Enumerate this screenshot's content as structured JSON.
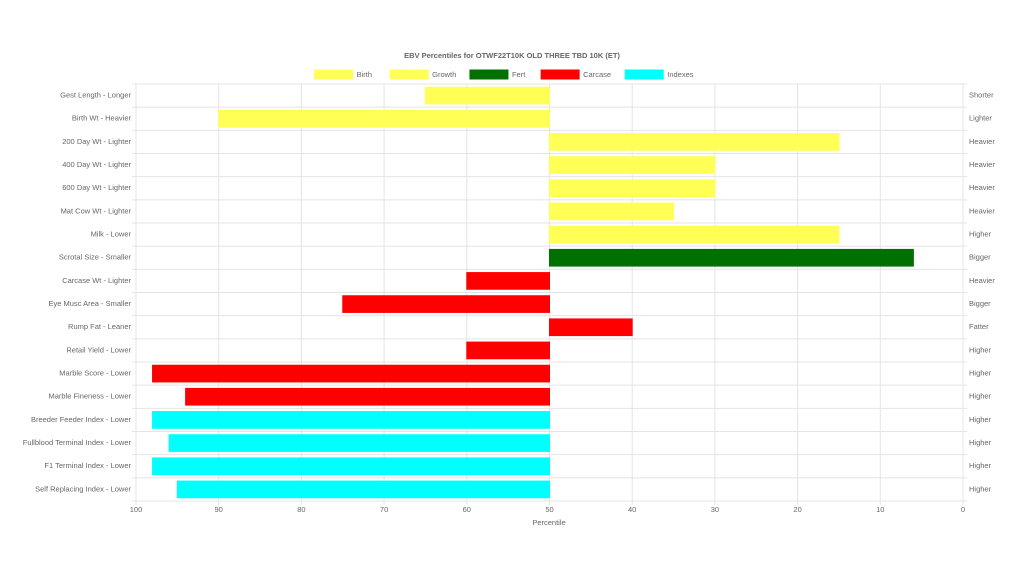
{
  "chart_data": {
    "type": "floating-bar",
    "title": "EBV Percentiles for OTWF22T10K OLD THREE TBD 10K (ET)",
    "x_label": "Percentile",
    "categories": [
      "Gest Length - Longer",
      "Birth Wt - Heavier",
      "200 Day Wt - Lighter",
      "400 Day Wt - Lighter",
      "600 Day Wt - Lighter",
      "Mat Cow Wt - Lighter",
      "Milk - Lower",
      "Scrotal Size - Smaller",
      "Carcase Wt - Lighter",
      "Eye Musc Area - Smaller",
      "Rump Fat - Leaner",
      "Retail Yield - Lower",
      "Marble Score - Lower",
      "Marble Fineness - Lower",
      "Breeder Feeder Index - Lower",
      "Fullblood Terminal Index - Lower",
      "F1 Terminal Index - Lower",
      "Self Replacing Index - Lower"
    ],
    "right_labels": [
      "Shorter",
      "Lighter",
      "Heavier",
      "Heavier",
      "Heavier",
      "Heavier",
      "Higher",
      "Bigger",
      "Heavier",
      "Bigger",
      "Fatter",
      "Higher",
      "Higher",
      "Higher",
      "Higher",
      "Higher",
      "Higher",
      "Higher"
    ],
    "base": 50,
    "series": [
      {
        "name": "Birth",
        "color": "#ffff55",
        "values": [
          65,
          90,
          null,
          null,
          null,
          null,
          null,
          null,
          null,
          null,
          null,
          null,
          null,
          null,
          null,
          null,
          null,
          null
        ]
      },
      {
        "name": "Growth",
        "color": "#ffff55",
        "values": [
          null,
          null,
          15,
          30,
          30,
          35,
          15,
          null,
          null,
          null,
          null,
          null,
          null,
          null,
          null,
          null,
          null,
          null
        ]
      },
      {
        "name": "Fert",
        "color": "#007000",
        "values": [
          null,
          null,
          null,
          null,
          null,
          null,
          null,
          6,
          null,
          null,
          null,
          null,
          null,
          null,
          null,
          null,
          null,
          null
        ]
      },
      {
        "name": "Carcase",
        "color": "#ff0000",
        "values": [
          null,
          null,
          null,
          null,
          null,
          null,
          null,
          null,
          60,
          75,
          40,
          60,
          98,
          94,
          null,
          null,
          null,
          null
        ]
      },
      {
        "name": "Indexes",
        "color": "#00ffff",
        "values": [
          null,
          null,
          null,
          null,
          null,
          null,
          null,
          null,
          null,
          null,
          null,
          null,
          null,
          null,
          98,
          96,
          98,
          95
        ]
      }
    ],
    "xlim": [
      100,
      0
    ],
    "xticks": [
      100,
      90,
      80,
      70,
      60,
      50,
      40,
      30,
      20,
      10,
      0
    ],
    "grid": true
  }
}
